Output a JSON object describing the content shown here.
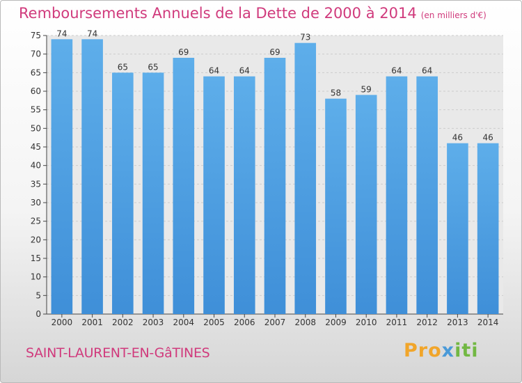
{
  "header": {
    "title": "Remboursements Annuels de la Dette de 2000 à 2014",
    "unit": "(en milliers d'€)"
  },
  "commune": "SAINT-LAURENT-EN-GâTINES",
  "logo": {
    "p1": "Pro",
    "p2": "x",
    "p3": "iti"
  },
  "colors": {
    "bar": "#3f8fd8",
    "title": "#d03a7c",
    "grid": "#cccccc"
  },
  "chart_data": {
    "type": "bar",
    "title": "Remboursements Annuels de la Dette de 2000 à 2014",
    "subtitle": "(en milliers d'€)",
    "xlabel": "",
    "ylabel": "",
    "categories": [
      "2000",
      "2001",
      "2002",
      "2003",
      "2004",
      "2005",
      "2006",
      "2007",
      "2008",
      "2009",
      "2010",
      "2011",
      "2012",
      "2013",
      "2014"
    ],
    "values": [
      74,
      74,
      65,
      65,
      69,
      64,
      64,
      69,
      73,
      58,
      59,
      64,
      64,
      46,
      46
    ],
    "ylim": [
      0,
      75
    ],
    "yticks": [
      0,
      5,
      10,
      15,
      20,
      25,
      30,
      35,
      40,
      45,
      50,
      55,
      60,
      65,
      70,
      75
    ],
    "grid": true,
    "data_labels": true
  }
}
